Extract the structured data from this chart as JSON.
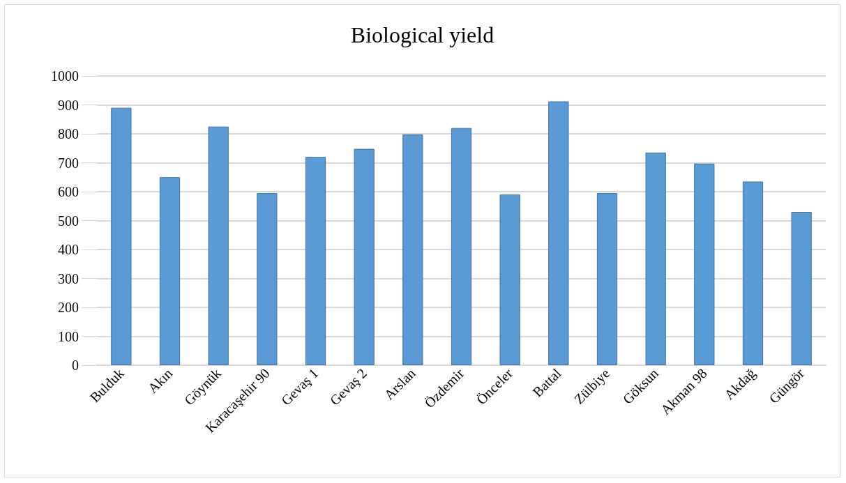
{
  "chart_data": {
    "type": "bar",
    "title": "Biological yield",
    "categories": [
      "Bulduk",
      "Akın",
      "Göynük",
      "Karacaşehir 90",
      "Gevaş 1",
      "Gevaş 2",
      "Arslan",
      "Özdemir",
      "Önceler",
      "Battal",
      "Zülbiye",
      "Göksun",
      "Akman 98",
      "Akdağ",
      "Güngör"
    ],
    "values": [
      890,
      650,
      825,
      595,
      720,
      748,
      798,
      820,
      590,
      912,
      595,
      735,
      697,
      635,
      530
    ],
    "color": "#5b9bd5",
    "ylim": [
      0,
      1000
    ],
    "yticks": [
      0,
      100,
      200,
      300,
      400,
      500,
      600,
      700,
      800,
      900,
      1000
    ],
    "grid": "y"
  }
}
